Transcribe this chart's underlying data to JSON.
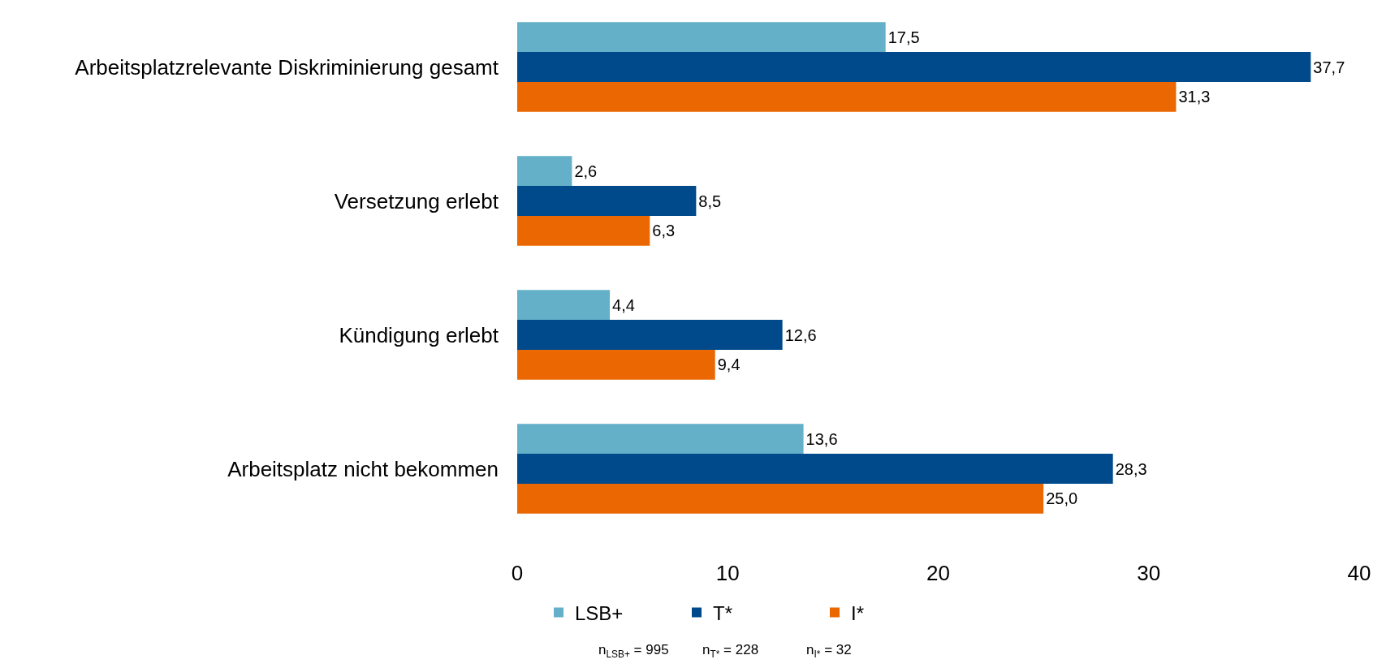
{
  "chart_data": {
    "type": "bar",
    "orientation": "horizontal",
    "categories": [
      "Arbeitsplatzrelevante Diskriminierung gesamt",
      "Versetzung erlebt",
      "Kündigung erlebt",
      "Arbeitsplatz nicht bekommen"
    ],
    "series": [
      {
        "name": "LSB+",
        "color": "#63b0c8",
        "values": [
          17.5,
          2.6,
          4.4,
          13.6
        ],
        "value_labels": [
          "17,5",
          "2,6",
          "4,4",
          "13,6"
        ]
      },
      {
        "name": "T*",
        "color": "#004a8b",
        "values": [
          37.7,
          8.5,
          12.6,
          28.3
        ],
        "value_labels": [
          "37,7",
          "8,5",
          "12,6",
          "28,3"
        ]
      },
      {
        "name": "I*",
        "color": "#ea6701",
        "values": [
          31.3,
          6.3,
          9.4,
          25.0
        ],
        "value_labels": [
          "31,3",
          "6,3",
          "9,4",
          "25,0"
        ]
      }
    ],
    "xlim": [
      0,
      40
    ],
    "xticks": [
      0,
      10,
      20,
      30,
      40
    ],
    "grid": false,
    "legend": "bottom",
    "annotations": [
      "n$_{LSB+}$ = 995",
      "n$_{T*}$ = 228",
      "n$_{I*}$ = 32"
    ]
  }
}
